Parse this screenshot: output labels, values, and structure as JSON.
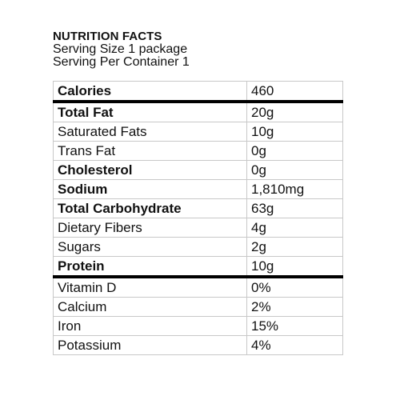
{
  "header": {
    "title": "NUTRITION FACTS",
    "serving_size": "Serving Size 1 package",
    "servings_per_container": "Serving Per Container 1"
  },
  "rows": [
    {
      "name": "Calories",
      "value": "460",
      "bold": true,
      "indent": false,
      "thick_divider_after": true
    },
    {
      "name": "Total Fat",
      "value": "20g",
      "bold": true,
      "indent": false,
      "thick_divider_after": false
    },
    {
      "name": "Saturated Fats",
      "value": "10g",
      "bold": false,
      "indent": true,
      "thick_divider_after": false
    },
    {
      "name": "Trans Fat",
      "value": "0g",
      "bold": false,
      "indent": true,
      "thick_divider_after": false
    },
    {
      "name": "Cholesterol",
      "value": "0g",
      "bold": true,
      "indent": false,
      "thick_divider_after": false
    },
    {
      "name": "Sodium",
      "value": "1,810mg",
      "bold": true,
      "indent": false,
      "thick_divider_after": false
    },
    {
      "name": "Total Carbohydrate",
      "value": "63g",
      "bold": true,
      "indent": false,
      "thick_divider_after": false
    },
    {
      "name": "Dietary Fibers",
      "value": "4g",
      "bold": false,
      "indent": true,
      "thick_divider_after": false
    },
    {
      "name": "Sugars",
      "value": "2g",
      "bold": false,
      "indent": true,
      "thick_divider_after": false
    },
    {
      "name": "Protein",
      "value": "10g",
      "bold": true,
      "indent": false,
      "thick_divider_after": true
    },
    {
      "name": "Vitamin D",
      "value": "0%",
      "bold": false,
      "indent": false,
      "thick_divider_after": false
    },
    {
      "name": "Calcium",
      "value": "2%",
      "bold": false,
      "indent": false,
      "thick_divider_after": false
    },
    {
      "name": "Iron",
      "value": "15%",
      "bold": false,
      "indent": false,
      "thick_divider_after": false
    },
    {
      "name": "Potassium",
      "value": "4%",
      "bold": false,
      "indent": false,
      "thick_divider_after": false
    }
  ]
}
